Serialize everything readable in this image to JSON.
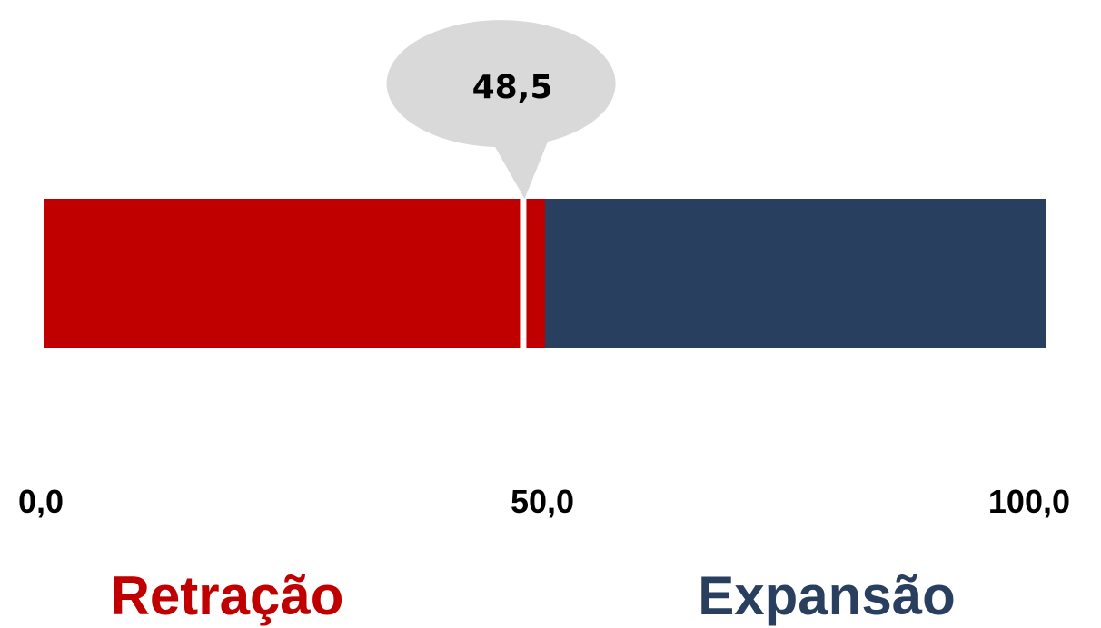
{
  "chart_data": {
    "type": "bar",
    "value": 48.5,
    "value_label": "48,5",
    "range": [
      0,
      100
    ],
    "threshold": 50,
    "ticks": [
      {
        "value": 0,
        "label": "0,0"
      },
      {
        "value": 50,
        "label": "50,0"
      },
      {
        "value": 100,
        "label": "100,0"
      }
    ],
    "zones": [
      {
        "from": 0,
        "to": 50,
        "label": "Retração",
        "color": "#c00000"
      },
      {
        "from": 50,
        "to": 100,
        "label": "Expansão",
        "color": "#283f5f"
      }
    ],
    "callout_color": "#d9d9d9"
  }
}
